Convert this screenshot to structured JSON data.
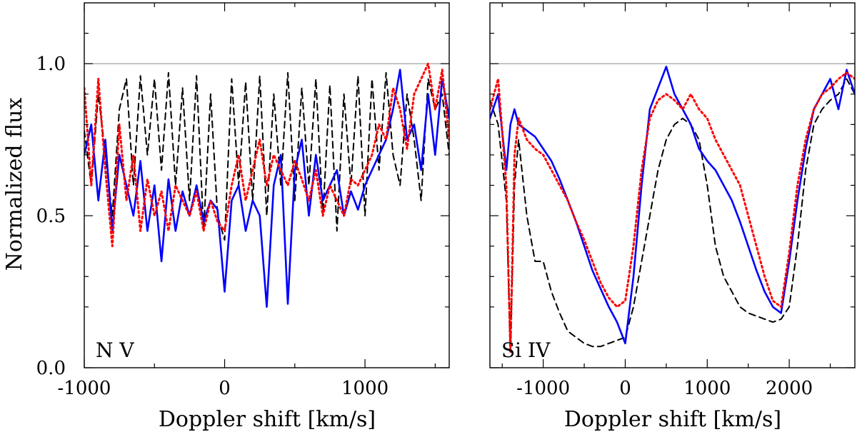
{
  "chart_data": [
    {
      "type": "line",
      "panel_label": "N V",
      "xlabel": "Doppler shift [km/s]",
      "ylabel": "Normalized flux",
      "xlim": [
        -1000,
        1600
      ],
      "ylim": [
        0.0,
        1.2
      ],
      "x_ticks": [
        -1000,
        0,
        1000
      ],
      "x_tick_labels": [
        "-1000",
        "0",
        "1000"
      ],
      "x_minor_ticks": [
        -500,
        500,
        1500
      ],
      "y_ticks": [
        0.0,
        0.5,
        1.0
      ],
      "y_tick_labels": [
        "0.0",
        "0.5",
        "1.0"
      ],
      "y_minor_ticks": [
        0.2,
        0.3,
        0.4,
        0.6,
        0.7,
        0.8,
        0.9,
        1.1
      ],
      "reference_line": 1.0,
      "series": [
        {
          "name": "dashed",
          "color": "#000000",
          "style": "dashed",
          "x": [
            -1000,
            -950,
            -900,
            -850,
            -800,
            -750,
            -700,
            -650,
            -600,
            -550,
            -500,
            -450,
            -400,
            -350,
            -300,
            -250,
            -200,
            -150,
            -100,
            -50,
            0,
            50,
            100,
            150,
            200,
            250,
            300,
            350,
            400,
            450,
            500,
            550,
            600,
            650,
            700,
            750,
            800,
            850,
            900,
            950,
            1000,
            1050,
            1100,
            1150,
            1200,
            1250,
            1300,
            1350,
            1400,
            1450,
            1500,
            1550,
            1600
          ],
          "y": [
            0.78,
            0.6,
            0.9,
            0.7,
            0.5,
            0.85,
            0.95,
            0.6,
            0.96,
            0.7,
            0.95,
            0.65,
            0.97,
            0.6,
            0.92,
            0.55,
            0.96,
            0.45,
            0.9,
            0.5,
            0.42,
            0.95,
            0.6,
            0.94,
            0.55,
            0.96,
            0.5,
            0.9,
            0.6,
            0.97,
            0.55,
            0.92,
            0.6,
            0.95,
            0.5,
            0.93,
            0.45,
            0.9,
            0.6,
            0.96,
            0.5,
            0.95,
            0.65,
            0.97,
            0.7,
            0.6,
            0.9,
            0.75,
            0.55,
            0.95,
            0.85,
            0.9,
            0.7
          ]
        },
        {
          "name": "solid",
          "color": "#0000ff",
          "style": "solid",
          "x": [
            -1000,
            -950,
            -900,
            -850,
            -800,
            -750,
            -700,
            -650,
            -600,
            -550,
            -500,
            -450,
            -400,
            -350,
            -300,
            -250,
            -200,
            -150,
            -100,
            -50,
            0,
            50,
            100,
            150,
            200,
            250,
            300,
            350,
            400,
            450,
            500,
            550,
            600,
            650,
            700,
            750,
            800,
            850,
            900,
            950,
            1000,
            1050,
            1100,
            1150,
            1200,
            1250,
            1300,
            1350,
            1400,
            1450,
            1500,
            1550,
            1600
          ],
          "y": [
            0.7,
            0.8,
            0.55,
            0.75,
            0.45,
            0.7,
            0.6,
            0.5,
            0.68,
            0.45,
            0.6,
            0.35,
            0.62,
            0.45,
            0.58,
            0.5,
            0.6,
            0.48,
            0.55,
            0.52,
            0.25,
            0.55,
            0.6,
            0.45,
            0.55,
            0.5,
            0.2,
            0.6,
            0.7,
            0.21,
            0.65,
            0.75,
            0.5,
            0.7,
            0.55,
            0.6,
            0.65,
            0.5,
            0.58,
            0.52,
            0.6,
            0.65,
            0.7,
            0.75,
            0.85,
            0.98,
            0.75,
            0.8,
            0.65,
            0.9,
            0.7,
            0.95,
            0.82
          ]
        },
        {
          "name": "dotted",
          "color": "#ff0000",
          "style": "dotted",
          "x": [
            -1000,
            -950,
            -900,
            -850,
            -800,
            -750,
            -700,
            -650,
            -600,
            -550,
            -500,
            -450,
            -400,
            -350,
            -300,
            -250,
            -200,
            -150,
            -100,
            -50,
            0,
            50,
            100,
            150,
            200,
            250,
            300,
            350,
            400,
            450,
            500,
            550,
            600,
            650,
            700,
            750,
            800,
            850,
            900,
            950,
            1000,
            1050,
            1100,
            1150,
            1200,
            1250,
            1300,
            1350,
            1400,
            1450,
            1500,
            1550,
            1600
          ],
          "y": [
            0.92,
            0.6,
            0.95,
            0.65,
            0.4,
            0.8,
            0.55,
            0.7,
            0.45,
            0.62,
            0.5,
            0.58,
            0.45,
            0.6,
            0.55,
            0.5,
            0.58,
            0.45,
            0.55,
            0.48,
            0.45,
            0.6,
            0.7,
            0.55,
            0.65,
            0.75,
            0.6,
            0.7,
            0.65,
            0.6,
            0.68,
            0.62,
            0.55,
            0.65,
            0.5,
            0.6,
            0.55,
            0.5,
            0.62,
            0.6,
            0.65,
            0.7,
            0.8,
            0.75,
            0.92,
            0.85,
            0.72,
            0.9,
            0.95,
            1.0,
            0.85,
            0.98,
            0.75
          ]
        }
      ]
    },
    {
      "type": "line",
      "panel_label": "Si IV",
      "xlabel": "Doppler shift [km/s]",
      "ylabel": "",
      "xlim": [
        -1650,
        2800
      ],
      "ylim": [
        0.0,
        1.2
      ],
      "x_ticks": [
        -1000,
        0,
        1000,
        2000
      ],
      "x_tick_labels": [
        "-1000",
        "0",
        "1000",
        "2000"
      ],
      "x_minor_ticks": [
        -1500,
        -500,
        500,
        1500,
        2500
      ],
      "y_ticks": [
        0.0,
        0.5,
        1.0
      ],
      "y_tick_labels": [
        "",
        "",
        ""
      ],
      "y_minor_ticks": [
        0.2,
        0.3,
        0.4,
        0.6,
        0.7,
        0.8,
        0.9,
        1.1
      ],
      "reference_line": 1.0,
      "series": [
        {
          "name": "dashed",
          "color": "#000000",
          "style": "dashed",
          "x": [
            -1650,
            -1550,
            -1450,
            -1400,
            -1350,
            -1300,
            -1200,
            -1100,
            -1000,
            -900,
            -800,
            -700,
            -600,
            -500,
            -400,
            -300,
            -200,
            -100,
            0,
            100,
            200,
            300,
            400,
            500,
            600,
            700,
            800,
            900,
            1000,
            1100,
            1200,
            1300,
            1400,
            1500,
            1600,
            1700,
            1800,
            1900,
            2000,
            2100,
            2200,
            2300,
            2400,
            2500,
            2600,
            2700,
            2800
          ],
          "y": [
            0.88,
            0.8,
            0.55,
            0.05,
            0.6,
            0.75,
            0.5,
            0.35,
            0.35,
            0.25,
            0.18,
            0.12,
            0.1,
            0.08,
            0.07,
            0.07,
            0.08,
            0.09,
            0.1,
            0.2,
            0.35,
            0.5,
            0.65,
            0.75,
            0.8,
            0.82,
            0.8,
            0.75,
            0.6,
            0.4,
            0.3,
            0.25,
            0.2,
            0.18,
            0.17,
            0.16,
            0.15,
            0.16,
            0.2,
            0.4,
            0.65,
            0.8,
            0.85,
            0.88,
            0.9,
            0.95,
            0.9
          ]
        },
        {
          "name": "solid",
          "color": "#0000ff",
          "style": "solid",
          "x": [
            -1650,
            -1550,
            -1450,
            -1400,
            -1350,
            -1300,
            -1200,
            -1100,
            -1000,
            -900,
            -800,
            -700,
            -600,
            -500,
            -400,
            -300,
            -200,
            -100,
            0,
            100,
            200,
            300,
            400,
            500,
            600,
            700,
            800,
            900,
            1000,
            1100,
            1200,
            1300,
            1400,
            1500,
            1600,
            1700,
            1800,
            1900,
            2000,
            2100,
            2200,
            2300,
            2400,
            2500,
            2600,
            2700,
            2800
          ],
          "y": [
            0.82,
            0.9,
            0.65,
            0.8,
            0.85,
            0.8,
            0.78,
            0.76,
            0.72,
            0.68,
            0.62,
            0.55,
            0.48,
            0.4,
            0.32,
            0.26,
            0.2,
            0.15,
            0.08,
            0.3,
            0.6,
            0.85,
            0.92,
            0.99,
            0.9,
            0.85,
            0.8,
            0.72,
            0.68,
            0.65,
            0.6,
            0.55,
            0.48,
            0.4,
            0.32,
            0.25,
            0.2,
            0.18,
            0.35,
            0.55,
            0.72,
            0.85,
            0.9,
            0.95,
            0.85,
            0.98,
            0.9
          ]
        },
        {
          "name": "dotted",
          "color": "#ff0000",
          "style": "dotted",
          "x": [
            -1650,
            -1550,
            -1450,
            -1400,
            -1350,
            -1300,
            -1200,
            -1100,
            -1000,
            -900,
            -800,
            -700,
            -600,
            -500,
            -400,
            -300,
            -200,
            -100,
            0,
            100,
            200,
            300,
            400,
            500,
            600,
            700,
            800,
            900,
            1000,
            1100,
            1200,
            1300,
            1400,
            1500,
            1600,
            1700,
            1800,
            1900,
            2000,
            2100,
            2200,
            2300,
            2400,
            2500,
            2600,
            2700,
            2800
          ],
          "y": [
            0.85,
            0.95,
            0.6,
            0.05,
            0.7,
            0.82,
            0.75,
            0.72,
            0.7,
            0.65,
            0.6,
            0.55,
            0.48,
            0.42,
            0.35,
            0.28,
            0.23,
            0.2,
            0.22,
            0.4,
            0.65,
            0.82,
            0.88,
            0.9,
            0.88,
            0.85,
            0.9,
            0.85,
            0.82,
            0.75,
            0.7,
            0.65,
            0.6,
            0.5,
            0.4,
            0.3,
            0.22,
            0.2,
            0.38,
            0.6,
            0.75,
            0.85,
            0.9,
            0.92,
            0.95,
            0.97,
            0.95
          ]
        }
      ]
    }
  ]
}
